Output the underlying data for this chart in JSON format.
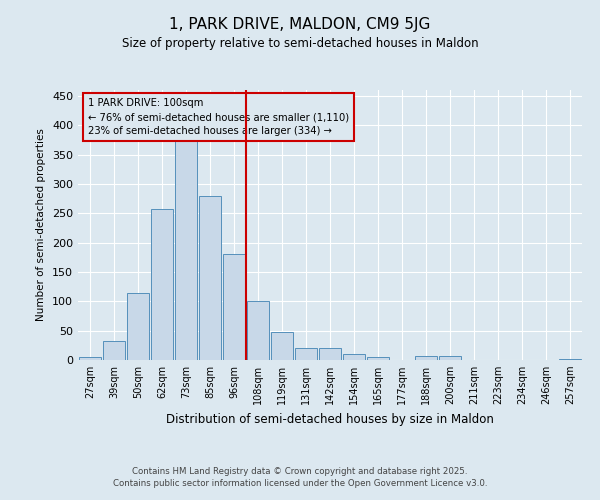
{
  "title": "1, PARK DRIVE, MALDON, CM9 5JG",
  "subtitle": "Size of property relative to semi-detached houses in Maldon",
  "xlabel": "Distribution of semi-detached houses by size in Maldon",
  "ylabel": "Number of semi-detached properties",
  "categories": [
    "27sqm",
    "39sqm",
    "50sqm",
    "62sqm",
    "73sqm",
    "85sqm",
    "96sqm",
    "108sqm",
    "119sqm",
    "131sqm",
    "142sqm",
    "154sqm",
    "165sqm",
    "177sqm",
    "188sqm",
    "200sqm",
    "211sqm",
    "223sqm",
    "234sqm",
    "246sqm",
    "257sqm"
  ],
  "values": [
    5,
    32,
    115,
    258,
    375,
    280,
    180,
    100,
    47,
    20,
    20,
    10,
    5,
    0,
    7,
    7,
    0,
    0,
    0,
    0,
    2
  ],
  "bar_color": "#c8d8e8",
  "bar_edge_color": "#5590bb",
  "vline_x_index": 6,
  "vline_color": "#cc0000",
  "annotation_title": "1 PARK DRIVE: 100sqm",
  "annotation_line1": "← 76% of semi-detached houses are smaller (1,110)",
  "annotation_line2": "23% of semi-detached houses are larger (334) →",
  "annotation_box_color": "#cc0000",
  "ylim": [
    0,
    460
  ],
  "yticks": [
    0,
    50,
    100,
    150,
    200,
    250,
    300,
    350,
    400,
    450
  ],
  "footer_line1": "Contains HM Land Registry data © Crown copyright and database right 2025.",
  "footer_line2": "Contains public sector information licensed under the Open Government Licence v3.0.",
  "bg_color": "#dce8f0",
  "grid_color": "#ffffff"
}
